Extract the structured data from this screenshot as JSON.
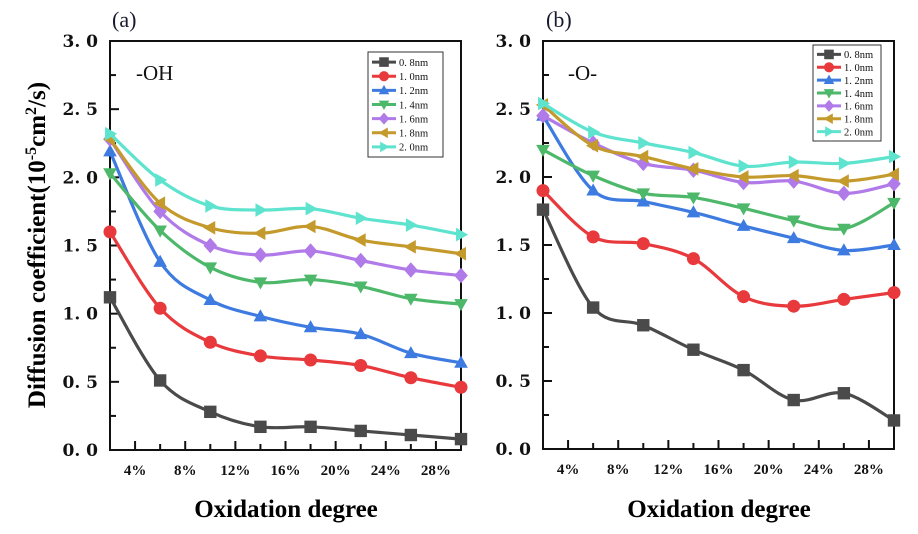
{
  "figure": {
    "ylabel": "Diffusion coefficient(10",
    "ylabel_sup1": "-5",
    "ylabel_mid": "cm",
    "ylabel_sup2": "2",
    "ylabel_end": "/s)"
  },
  "chart_data": [
    {
      "type": "line",
      "panel_label": "(a)",
      "annotation": "-OH",
      "title": "",
      "xlabel": "Oxidation degree",
      "ylabel": "Diffusion coefficient(10^-5 cm^2/s)",
      "xlim": [
        2,
        30
      ],
      "ylim": [
        0,
        3.0
      ],
      "x": [
        2,
        6,
        10,
        14,
        18,
        22,
        26,
        30
      ],
      "x_ticks": [
        4,
        8,
        12,
        16,
        20,
        24,
        28
      ],
      "x_tick_labels": [
        "4%",
        "8%",
        "12%",
        "16%",
        "20%",
        "24%",
        "28%"
      ],
      "y_ticks": [
        0,
        0.5,
        1.0,
        1.5,
        2.0,
        2.5,
        3.0
      ],
      "y_tick_labels": [
        "0. 0",
        "0. 5",
        "1. 0",
        "1. 5",
        "2. 0",
        "2. 5",
        "3. 0"
      ],
      "grid": false,
      "legend_position": "top-right",
      "series": [
        {
          "name": "0. 8nm",
          "color": "#4a4a4a",
          "marker": "square",
          "values": [
            1.12,
            0.51,
            0.28,
            0.17,
            0.17,
            0.14,
            0.11,
            0.08
          ]
        },
        {
          "name": "1. 0nm",
          "color": "#e8393d",
          "marker": "circle",
          "values": [
            1.6,
            1.04,
            0.79,
            0.69,
            0.66,
            0.62,
            0.53,
            0.46
          ]
        },
        {
          "name": "1. 2nm",
          "color": "#3d7be0",
          "marker": "triangle-up",
          "values": [
            2.19,
            1.38,
            1.1,
            0.98,
            0.9,
            0.85,
            0.71,
            0.64
          ]
        },
        {
          "name": "1. 4nm",
          "color": "#4db86a",
          "marker": "triangle-down",
          "values": [
            2.03,
            1.61,
            1.34,
            1.23,
            1.25,
            1.2,
            1.11,
            1.07
          ]
        },
        {
          "name": "1. 6nm",
          "color": "#b07ae8",
          "marker": "diamond",
          "values": [
            2.28,
            1.75,
            1.5,
            1.43,
            1.46,
            1.39,
            1.32,
            1.28
          ]
        },
        {
          "name": "1. 8nm",
          "color": "#c49a2c",
          "marker": "triangle-left",
          "values": [
            2.28,
            1.81,
            1.63,
            1.59,
            1.64,
            1.54,
            1.49,
            1.44
          ]
        },
        {
          "name": "2. 0nm",
          "color": "#5ee3cf",
          "marker": "triangle-right",
          "values": [
            2.32,
            1.98,
            1.79,
            1.76,
            1.77,
            1.7,
            1.65,
            1.58
          ]
        }
      ]
    },
    {
      "type": "line",
      "panel_label": "(b)",
      "annotation": "-O-",
      "title": "",
      "xlabel": "Oxidation degree",
      "ylabel": "",
      "xlim": [
        2,
        30
      ],
      "ylim": [
        0,
        3.0
      ],
      "x": [
        2,
        6,
        10,
        14,
        18,
        22,
        26,
        30
      ],
      "x_ticks": [
        4,
        8,
        12,
        16,
        20,
        24,
        28
      ],
      "x_tick_labels": [
        "4%",
        "8%",
        "12%",
        "16%",
        "20%",
        "24%",
        "28%"
      ],
      "y_ticks": [
        0,
        0.5,
        1.0,
        1.5,
        2.0,
        2.5,
        3.0
      ],
      "y_tick_labels": [
        "0. 0",
        "0. 5",
        "1. 0",
        "1. 5",
        "2. 0",
        "2. 5",
        "3. 0"
      ],
      "grid": false,
      "legend_position": "top-right",
      "series": [
        {
          "name": "0. 8nm",
          "color": "#4a4a4a",
          "marker": "square",
          "values": [
            1.76,
            1.04,
            0.91,
            0.73,
            0.58,
            0.36,
            0.41,
            0.21
          ]
        },
        {
          "name": "1. 0nm",
          "color": "#e8393d",
          "marker": "circle",
          "values": [
            1.9,
            1.56,
            1.51,
            1.4,
            1.12,
            1.05,
            1.1,
            1.15
          ]
        },
        {
          "name": "1. 2nm",
          "color": "#3d7be0",
          "marker": "triangle-up",
          "values": [
            2.45,
            1.9,
            1.82,
            1.74,
            1.64,
            1.55,
            1.46,
            1.5
          ]
        },
        {
          "name": "1. 4nm",
          "color": "#4db86a",
          "marker": "triangle-down",
          "values": [
            2.2,
            2.01,
            1.88,
            1.85,
            1.77,
            1.68,
            1.62,
            1.81
          ]
        },
        {
          "name": "1. 6nm",
          "color": "#b07ae8",
          "marker": "diamond",
          "values": [
            2.45,
            2.25,
            2.1,
            2.05,
            1.96,
            1.97,
            1.88,
            1.95
          ]
        },
        {
          "name": "1. 8nm",
          "color": "#c49a2c",
          "marker": "triangle-left",
          "values": [
            2.53,
            2.23,
            2.15,
            2.06,
            2.0,
            2.01,
            1.97,
            2.02
          ]
        },
        {
          "name": "2. 0nm",
          "color": "#5ee3cf",
          "marker": "triangle-right",
          "values": [
            2.54,
            2.33,
            2.25,
            2.18,
            2.08,
            2.11,
            2.1,
            2.15
          ]
        }
      ]
    }
  ]
}
